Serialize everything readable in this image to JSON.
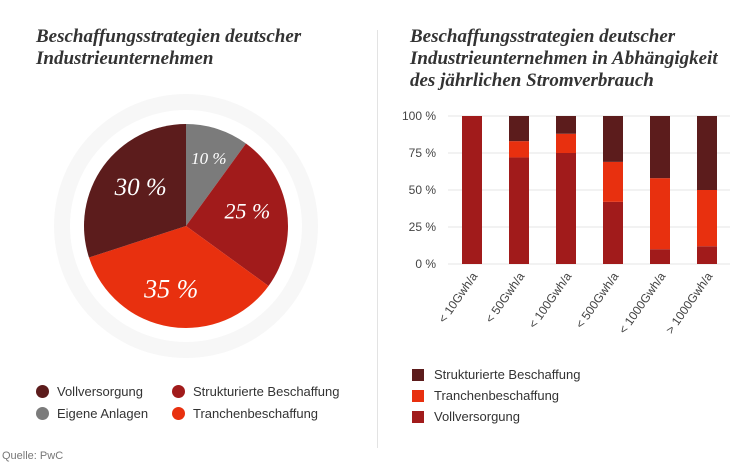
{
  "chart_data": [
    {
      "type": "pie",
      "title": "Beschaffungsstrategien deutscher Industrieunternehmen",
      "slices": [
        {
          "name": "Eigene Anlagen",
          "value": 10,
          "label": "10 %",
          "color": "#7b7b7b"
        },
        {
          "name": "Strukturierte Beschaffung",
          "value": 25,
          "label": "25 %",
          "color": "#a11b1b"
        },
        {
          "name": "Tranchenbeschaffung",
          "value": 35,
          "label": "35 %",
          "color": "#e8300f"
        },
        {
          "name": "Vollversorgung",
          "value": 30,
          "label": "30 %",
          "color": "#5c1c1c"
        }
      ],
      "legend": [
        {
          "name": "Vollversorgung",
          "color": "#5c1c1c"
        },
        {
          "name": "Strukturierte Beschaffung",
          "color": "#a11b1b"
        },
        {
          "name": "Eigene Anlagen",
          "color": "#7b7b7b"
        },
        {
          "name": "Tranchenbeschaffung",
          "color": "#e8300f"
        }
      ],
      "legend_position": "bottom"
    },
    {
      "type": "bar",
      "stacked": true,
      "title": "Beschaffungsstrategien deutscher Industrieunternehmen in Abhängigkeit des jährlichen Stromverbrauch",
      "categories": [
        "< 10Gwh/a",
        "< 50Gwh/a",
        "< 100Gwh/a",
        "< 500Gwh/a",
        "< 1000Gwh/a",
        "> 1000Gwh/a"
      ],
      "series": [
        {
          "name": "Vollversorgung",
          "color": "#a11b1b",
          "values": [
            100,
            72,
            75,
            42,
            10,
            12
          ]
        },
        {
          "name": "Tranchenbeschaffung",
          "color": "#e8300f",
          "values": [
            0,
            11,
            13,
            27,
            48,
            38
          ]
        },
        {
          "name": "Strukturierte Beschaffung",
          "color": "#5c1c1c",
          "values": [
            0,
            17,
            12,
            31,
            42,
            50
          ]
        }
      ],
      "ylim": [
        0,
        100
      ],
      "yticks": [
        "0 %",
        "25 %",
        "50 %",
        "75 %",
        "100 %"
      ],
      "legend": [
        {
          "name": "Strukturierte Beschaffung",
          "color": "#5c1c1c"
        },
        {
          "name": "Tranchenbeschaffung",
          "color": "#e8300f"
        },
        {
          "name": "Vollversorgung",
          "color": "#a11b1b"
        }
      ],
      "legend_position": "bottom"
    }
  ],
  "source": "Quelle: PwC"
}
